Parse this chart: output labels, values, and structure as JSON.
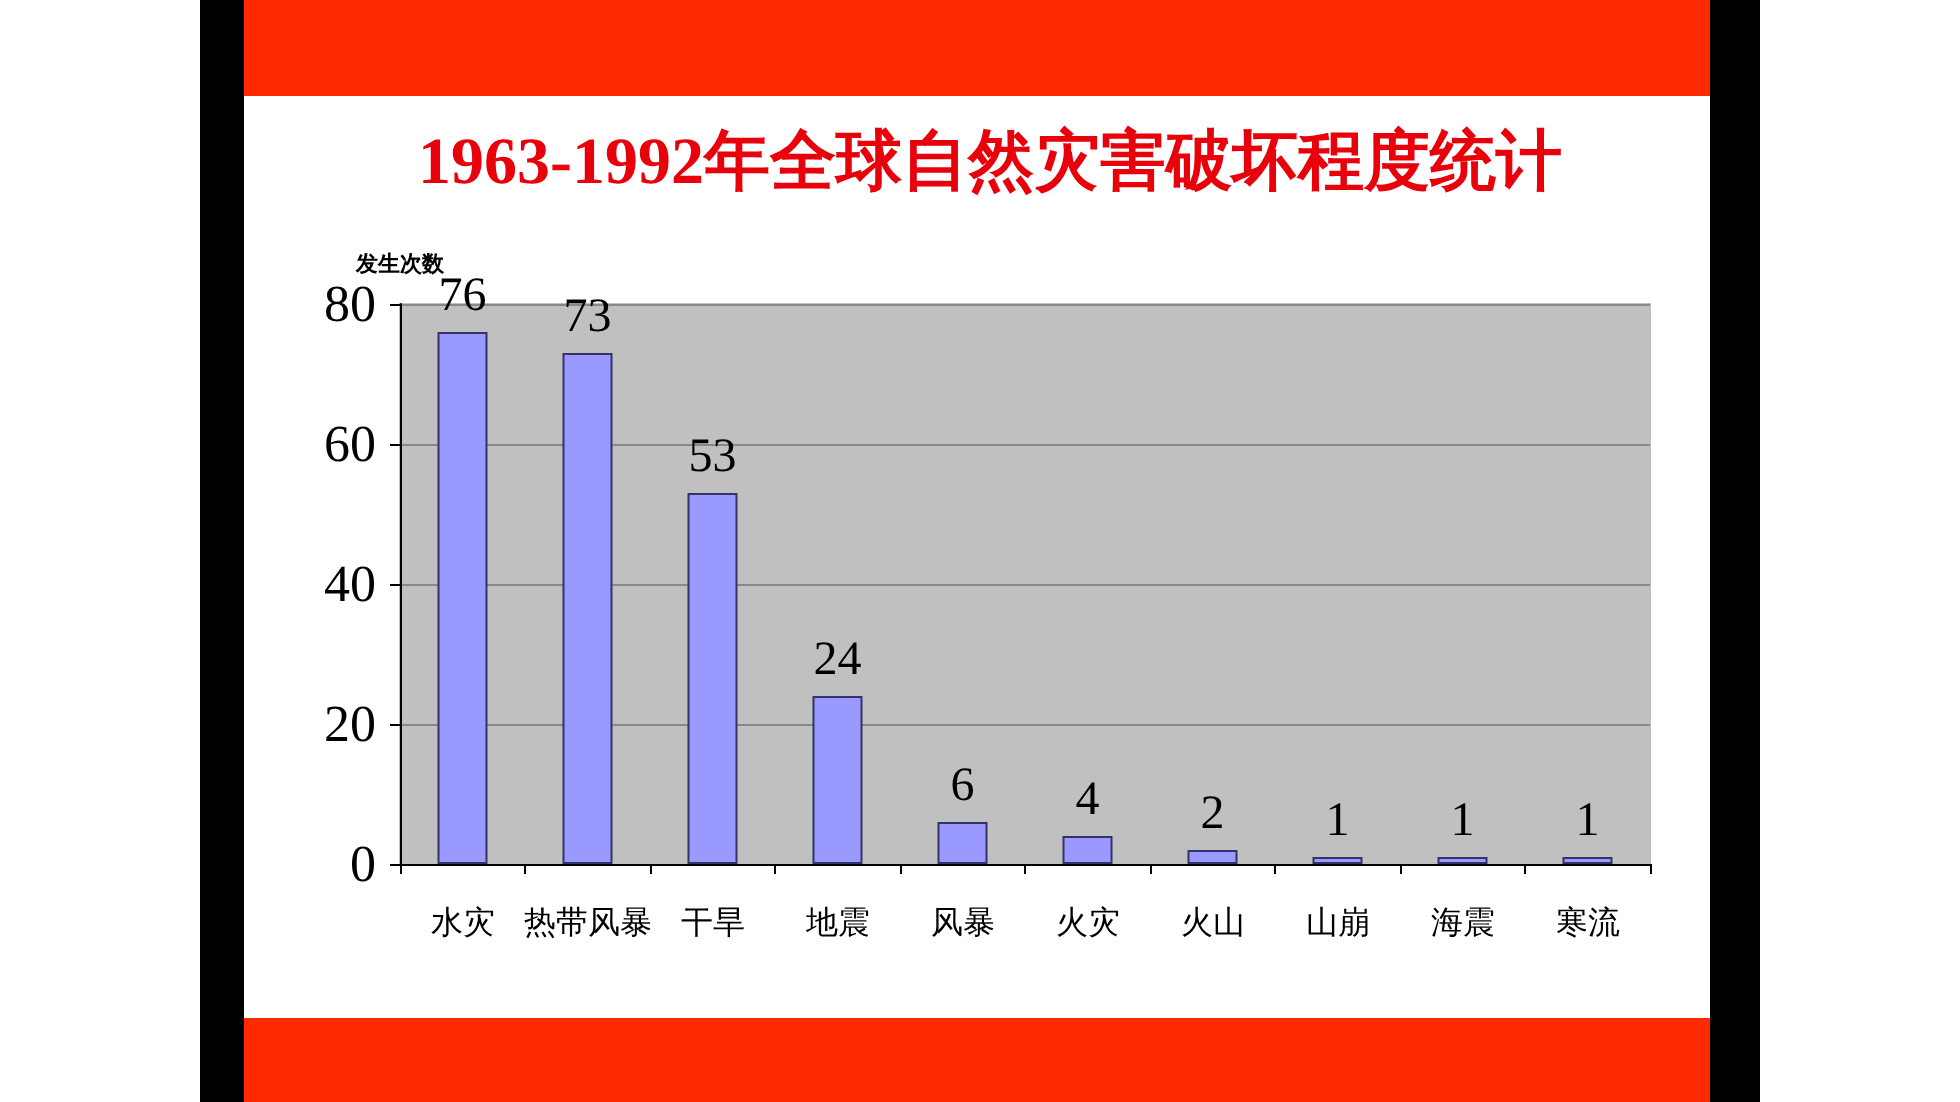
{
  "chart_data": {
    "type": "bar",
    "title": "1963-1992年全球自然灾害破坏程度统计",
    "ylabel": "发生次数",
    "categories": [
      "水灾",
      "热带风暴",
      "干旱",
      "地震",
      "风暴",
      "火灾",
      "火山",
      "山崩",
      "海震",
      "寒流"
    ],
    "values": [
      76,
      73,
      53,
      24,
      6,
      4,
      2,
      1,
      1,
      1
    ],
    "color": "#9999ff",
    "ylim": [
      0,
      80
    ],
    "yticks": [
      0,
      20,
      40,
      60,
      80
    ],
    "grid": "y",
    "data_labels": true
  }
}
